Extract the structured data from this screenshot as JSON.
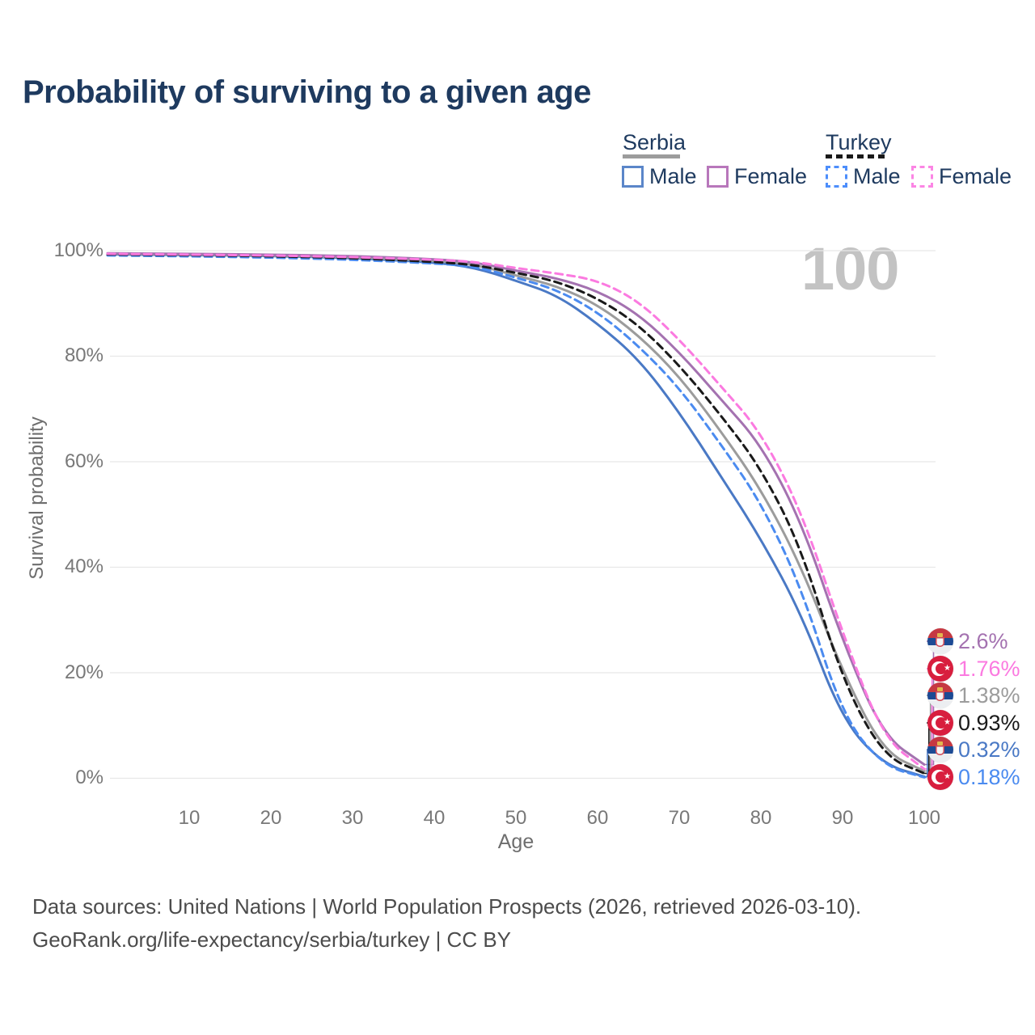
{
  "title": "Probability of surviving to a given age",
  "watermark": "100",
  "legend": {
    "serbia": {
      "label": "Serbia",
      "male": "Male",
      "female": "Female"
    },
    "turkey": {
      "label": "Turkey",
      "male": "Male",
      "female": "Female"
    }
  },
  "axes": {
    "y_title": "Survival probability",
    "y_ticks": [
      "100%",
      "80%",
      "60%",
      "40%",
      "20%",
      "0%"
    ],
    "x_ticks": [
      "10",
      "20",
      "30",
      "40",
      "50",
      "60",
      "70",
      "80",
      "90",
      "100"
    ],
    "x_title": "Age"
  },
  "end_labels": [
    {
      "series": "serbia-female",
      "country": "Serbia",
      "value": "2.6%",
      "color": "#a472b0"
    },
    {
      "series": "turkey-female",
      "country": "Turkey",
      "value": "1.76%",
      "color": "#fb7ae0"
    },
    {
      "series": "serbia-total",
      "country": "Serbia",
      "value": "1.38%",
      "color": "#9c9c9c"
    },
    {
      "series": "turkey-total",
      "country": "Turkey",
      "value": "0.93%",
      "color": "#1a1a1a"
    },
    {
      "series": "serbia-male",
      "country": "Serbia",
      "value": "0.32%",
      "color": "#4a79c5"
    },
    {
      "series": "turkey-male",
      "country": "Turkey",
      "value": "0.18%",
      "color": "#4b8bf0"
    }
  ],
  "footer": {
    "line1": "Data sources: United Nations | World Population Prospects (2026, retrieved 2026-03-10).",
    "line2": "GeoRank.org/life-expectancy/serbia/turkey | CC BY"
  },
  "chart_data": {
    "type": "line",
    "title": "Probability of surviving to a given age",
    "xlabel": "Age",
    "ylabel": "Survival probability",
    "xlim": [
      0,
      100
    ],
    "ylim": [
      0,
      100
    ],
    "grid": "horizontal",
    "legend_position": "top-right",
    "y_gridlines": [
      100,
      80,
      60,
      40,
      20,
      0
    ],
    "ages": [
      0,
      10,
      20,
      30,
      40,
      45,
      50,
      55,
      60,
      65,
      70,
      75,
      80,
      85,
      90,
      95,
      100
    ],
    "series": [
      {
        "id": "serbia-male",
        "name": "Serbia Male",
        "country": "Serbia",
        "sex": "male",
        "style": "solid",
        "color": "#4a79c5",
        "end_label": "0.32%",
        "values": [
          99.3,
          99.2,
          99.0,
          98.6,
          97.8,
          96.8,
          94.3,
          91.6,
          86.2,
          79.5,
          69.4,
          57.5,
          45.4,
          31.0,
          11.0,
          2.6,
          0.32
        ]
      },
      {
        "id": "serbia-total",
        "name": "Serbia Total",
        "country": "Serbia",
        "sex": "both",
        "style": "solid",
        "color": "#9c9c9c",
        "end_label": "1.38%",
        "values": [
          99.4,
          99.3,
          99.1,
          98.8,
          98.1,
          97.4,
          95.3,
          93.3,
          89.8,
          84.0,
          76.2,
          66.0,
          54.8,
          40.0,
          20.2,
          5.0,
          1.38
        ]
      },
      {
        "id": "serbia-female",
        "name": "Serbia Female",
        "country": "Serbia",
        "sex": "female",
        "style": "solid",
        "color": "#a472b0",
        "end_label": "2.6%",
        "values": [
          99.5,
          99.4,
          99.25,
          99.0,
          98.4,
          97.8,
          96.2,
          94.8,
          92.4,
          88.0,
          80.8,
          72.0,
          63.3,
          48.5,
          26.0,
          8.0,
          2.6
        ]
      },
      {
        "id": "turkey-male",
        "name": "Turkey Male",
        "country": "Turkey",
        "sex": "male",
        "style": "dashed",
        "color": "#4b8bf0",
        "end_label": "0.18%",
        "values": [
          99.1,
          98.95,
          98.7,
          98.3,
          97.6,
          97.0,
          94.9,
          92.6,
          88.4,
          82.0,
          74.0,
          63.5,
          52.3,
          36.0,
          11.8,
          2.3,
          0.18
        ]
      },
      {
        "id": "turkey-total",
        "name": "Turkey Total",
        "country": "Turkey",
        "sex": "both",
        "style": "dashed",
        "color": "#1a1a1a",
        "end_label": "0.93%",
        "values": [
          99.3,
          99.15,
          98.95,
          98.6,
          97.9,
          97.3,
          95.8,
          94.2,
          91.0,
          86.0,
          78.3,
          69.0,
          58.8,
          43.5,
          18.5,
          4.2,
          0.93
        ]
      },
      {
        "id": "turkey-female",
        "name": "Turkey Female",
        "country": "Turkey",
        "sex": "female",
        "style": "dashed",
        "color": "#fb7ae0",
        "end_label": "1.76%",
        "values": [
          99.4,
          99.25,
          99.1,
          98.8,
          98.3,
          97.9,
          96.7,
          95.7,
          94.4,
          90.5,
          83.2,
          74.5,
          65.6,
          50.5,
          27.5,
          7.6,
          1.76
        ]
      }
    ]
  }
}
